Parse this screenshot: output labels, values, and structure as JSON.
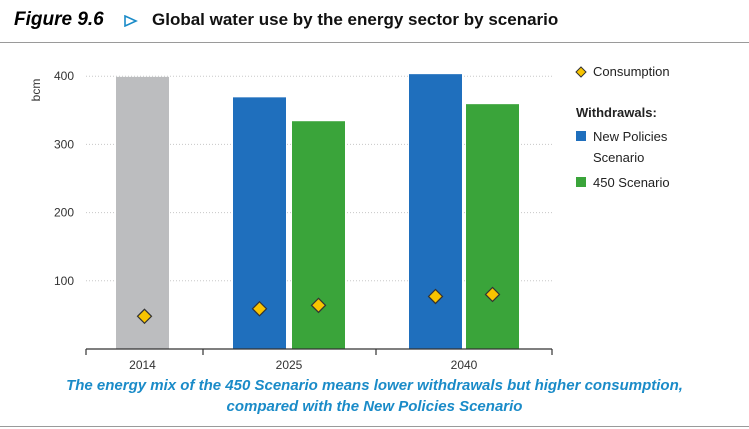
{
  "figure": {
    "label": "Figure 9.6",
    "title": "Global water use by the energy sector by scenario",
    "caption_line1": "The energy mix of the 450 Scenario means lower withdrawals but higher consumption,",
    "caption_line2": "compared with the New Policies Scenario"
  },
  "colors": {
    "accent": "#1a8bc8",
    "historical": "#bcbdbf",
    "new_policies": "#1f6fbd",
    "scenario_450": "#3aa43a",
    "consumption_fill": "#f8c400",
    "consumption_stroke": "#333333"
  },
  "chart_data": {
    "type": "bar",
    "ylabel": "bcm",
    "ylim": [
      0,
      400
    ],
    "yticks": [
      "100",
      "200",
      "300",
      "400"
    ],
    "grid": true,
    "legend_position": "top-right",
    "categories": [
      "2014",
      "2025",
      "2040"
    ],
    "historical": {
      "category": "2014",
      "withdrawal": 399,
      "consumption": 48
    },
    "series": [
      {
        "name": "New Policies Scenario",
        "withdrawals": [
          null,
          369,
          403
        ],
        "consumption": [
          null,
          59,
          77
        ]
      },
      {
        "name": "450 Scenario",
        "withdrawals": [
          null,
          334,
          359
        ],
        "consumption": [
          null,
          64,
          80
        ]
      }
    ],
    "legend": {
      "consumption": "Consumption",
      "withdrawals_heading": "Withdrawals:",
      "new_policies_line1": "New Policies",
      "new_policies_line2": "Scenario",
      "scenario_450": "450 Scenario"
    }
  }
}
